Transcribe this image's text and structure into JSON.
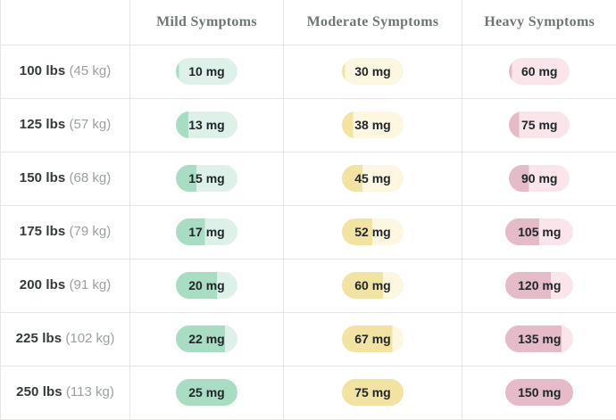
{
  "colors": {
    "background": "#ffffff",
    "border": "#e5e5e3",
    "header_text": "#6e7676",
    "weight_text": "#333a39",
    "metric_text": "#9aa09f",
    "pill_text": "#20262a"
  },
  "pill_styles": {
    "mild": {
      "fill": "#a8dcc3",
      "track": "#def1e8"
    },
    "moderate": {
      "fill": "#f2e3a2",
      "track": "#fdf6e0"
    },
    "heavy": {
      "fill": "#e5bbc8",
      "track": "#fae5ea"
    }
  },
  "table": {
    "headers": [
      {
        "label": ""
      },
      {
        "label": "Mild Symptoms"
      },
      {
        "label": "Moderate Symptoms"
      },
      {
        "label": "Heavy Symptoms"
      }
    ],
    "rows": [
      {
        "weight": "100 lbs",
        "weight_metric": "(45 kg)",
        "mild": "10 mg",
        "moderate": "30 mg",
        "heavy": "60 mg"
      },
      {
        "weight": "125 lbs",
        "weight_metric": "(57 kg)",
        "mild": "13 mg",
        "moderate": "38 mg",
        "heavy": "75 mg"
      },
      {
        "weight": "150 lbs",
        "weight_metric": "(68 kg)",
        "mild": "15 mg",
        "moderate": "45 mg",
        "heavy": "90 mg"
      },
      {
        "weight": "175 lbs",
        "weight_metric": "(79 kg)",
        "mild": "17 mg",
        "moderate": "52 mg",
        "heavy": "105 mg"
      },
      {
        "weight": "200 lbs",
        "weight_metric": "(91 kg)",
        "mild": "20 mg",
        "moderate": "60 mg",
        "heavy": "120 mg"
      },
      {
        "weight": "225 lbs",
        "weight_metric": "(102 kg)",
        "mild": "22 mg",
        "moderate": "67 mg",
        "heavy": "135 mg"
      },
      {
        "weight": "250 lbs",
        "weight_metric": "(113 kg)",
        "mild": "25 mg",
        "moderate": "75 mg",
        "heavy": "150 mg"
      }
    ]
  },
  "chart_data": {
    "type": "table",
    "columns": [
      "Mild Symptoms",
      "Moderate Symptoms",
      "Heavy Symptoms"
    ],
    "row_weights_lbs": [
      100,
      125,
      150,
      175,
      200,
      225,
      250
    ],
    "row_weights_kg": [
      45,
      57,
      68,
      79,
      91,
      102,
      113
    ],
    "unit": "mg",
    "series": [
      {
        "name": "Mild Symptoms",
        "values": [
          10,
          13,
          15,
          17,
          20,
          22,
          25
        ]
      },
      {
        "name": "Moderate Symptoms",
        "values": [
          30,
          38,
          45,
          52,
          60,
          67,
          75
        ]
      },
      {
        "name": "Heavy Symptoms",
        "values": [
          60,
          75,
          90,
          105,
          120,
          135,
          150
        ]
      }
    ],
    "pill_fill_note": "each badge is filled proportionally: (value - column min) / (column max - column min)"
  }
}
